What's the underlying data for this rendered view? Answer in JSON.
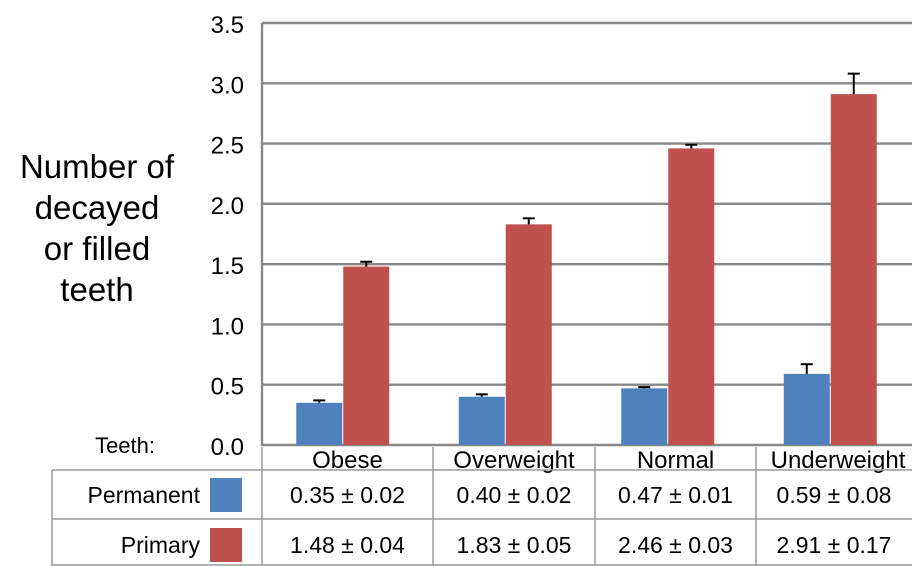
{
  "chart_data": {
    "type": "bar",
    "ylabel_lines": [
      "Number of",
      "decayed",
      "or filled",
      "teeth"
    ],
    "categories": [
      "Obese",
      "Overweight",
      "Normal",
      "Underweight"
    ],
    "ylim": [
      0,
      3.5
    ],
    "yticks": [
      "0.0",
      "0.5",
      "1.0",
      "1.5",
      "2.0",
      "2.5",
      "3.0",
      "3.5"
    ],
    "grid": true,
    "series": [
      {
        "name": "Permanent",
        "color": "#4f81bd",
        "values": [
          0.35,
          0.4,
          0.47,
          0.59
        ],
        "errors": [
          0.02,
          0.02,
          0.01,
          0.08
        ],
        "labels": [
          "0.35 ± 0.02",
          "0.40 ± 0.02",
          "0.47 ± 0.01",
          "0.59 ± 0.08"
        ]
      },
      {
        "name": "Primary",
        "color": "#c0504d",
        "values": [
          1.48,
          1.83,
          2.46,
          2.91
        ],
        "errors": [
          0.04,
          0.05,
          0.03,
          0.17
        ],
        "labels": [
          "1.48 ± 0.04",
          "1.83 ± 0.05",
          "2.46 ± 0.03",
          "2.91 ± 0.17"
        ]
      }
    ],
    "table_header": "Teeth:"
  }
}
